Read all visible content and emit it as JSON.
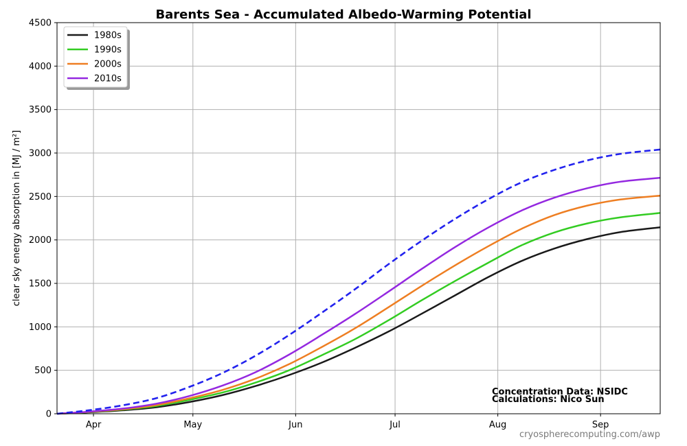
{
  "chart_data": {
    "type": "line",
    "title": "Barents Sea - Accumulated Albedo-Warming Potential",
    "ylabel": "clear sky energy absorption in  [MJ / m²]",
    "xlabel": "",
    "x_tick_labels": [
      "Apr",
      "May",
      "Jun",
      "Jul",
      "Aug",
      "Sep"
    ],
    "x_tick_days": [
      91,
      121,
      152,
      182,
      213,
      244
    ],
    "y_ticks": [
      0,
      500,
      1000,
      1500,
      2000,
      2500,
      3000,
      3500,
      4000,
      4500
    ],
    "xlim": [
      80,
      262
    ],
    "ylim": [
      0,
      4500
    ],
    "grid": true,
    "legend_position": "top-left",
    "x": [
      80,
      90,
      100,
      110,
      120,
      130,
      140,
      150,
      160,
      170,
      180,
      190,
      200,
      210,
      220,
      230,
      240,
      250,
      262
    ],
    "series": [
      {
        "name": "1980s",
        "color": "#1a1a1a",
        "style": "solid",
        "in_legend": true,
        "values": [
          0,
          17,
          40,
          75,
          135,
          215,
          320,
          445,
          590,
          760,
          945,
          1150,
          1360,
          1570,
          1755,
          1900,
          2010,
          2090,
          2145
        ]
      },
      {
        "name": "1990s",
        "color": "#33cc22",
        "style": "solid",
        "in_legend": true,
        "values": [
          0,
          20,
          48,
          90,
          160,
          245,
          360,
          500,
          675,
          860,
          1075,
          1305,
          1525,
          1735,
          1935,
          2085,
          2190,
          2260,
          2310
        ]
      },
      {
        "name": "2000s",
        "color": "#ee7e22",
        "style": "solid",
        "in_legend": true,
        "values": [
          0,
          22,
          52,
          100,
          178,
          275,
          405,
          570,
          770,
          985,
          1225,
          1470,
          1705,
          1925,
          2125,
          2285,
          2395,
          2465,
          2510
        ]
      },
      {
        "name": "2010s",
        "color": "#9428e0",
        "style": "solid",
        "in_legend": true,
        "values": [
          0,
          25,
          60,
          116,
          205,
          325,
          480,
          680,
          910,
          1150,
          1405,
          1665,
          1915,
          2140,
          2335,
          2485,
          2595,
          2670,
          2715
        ]
      },
      {
        "name": "",
        "color": "#2222ee",
        "style": "dashed",
        "in_legend": false,
        "values": [
          0,
          42,
          98,
          180,
          310,
          470,
          670,
          905,
          1165,
          1435,
          1720,
          1990,
          2240,
          2465,
          2660,
          2805,
          2915,
          2990,
          3040
        ]
      }
    ],
    "annotations": [
      "Concentration Data: NSIDC",
      "Calculations: Nico Sun"
    ],
    "source": "cryospherecomputing.com/awp"
  }
}
